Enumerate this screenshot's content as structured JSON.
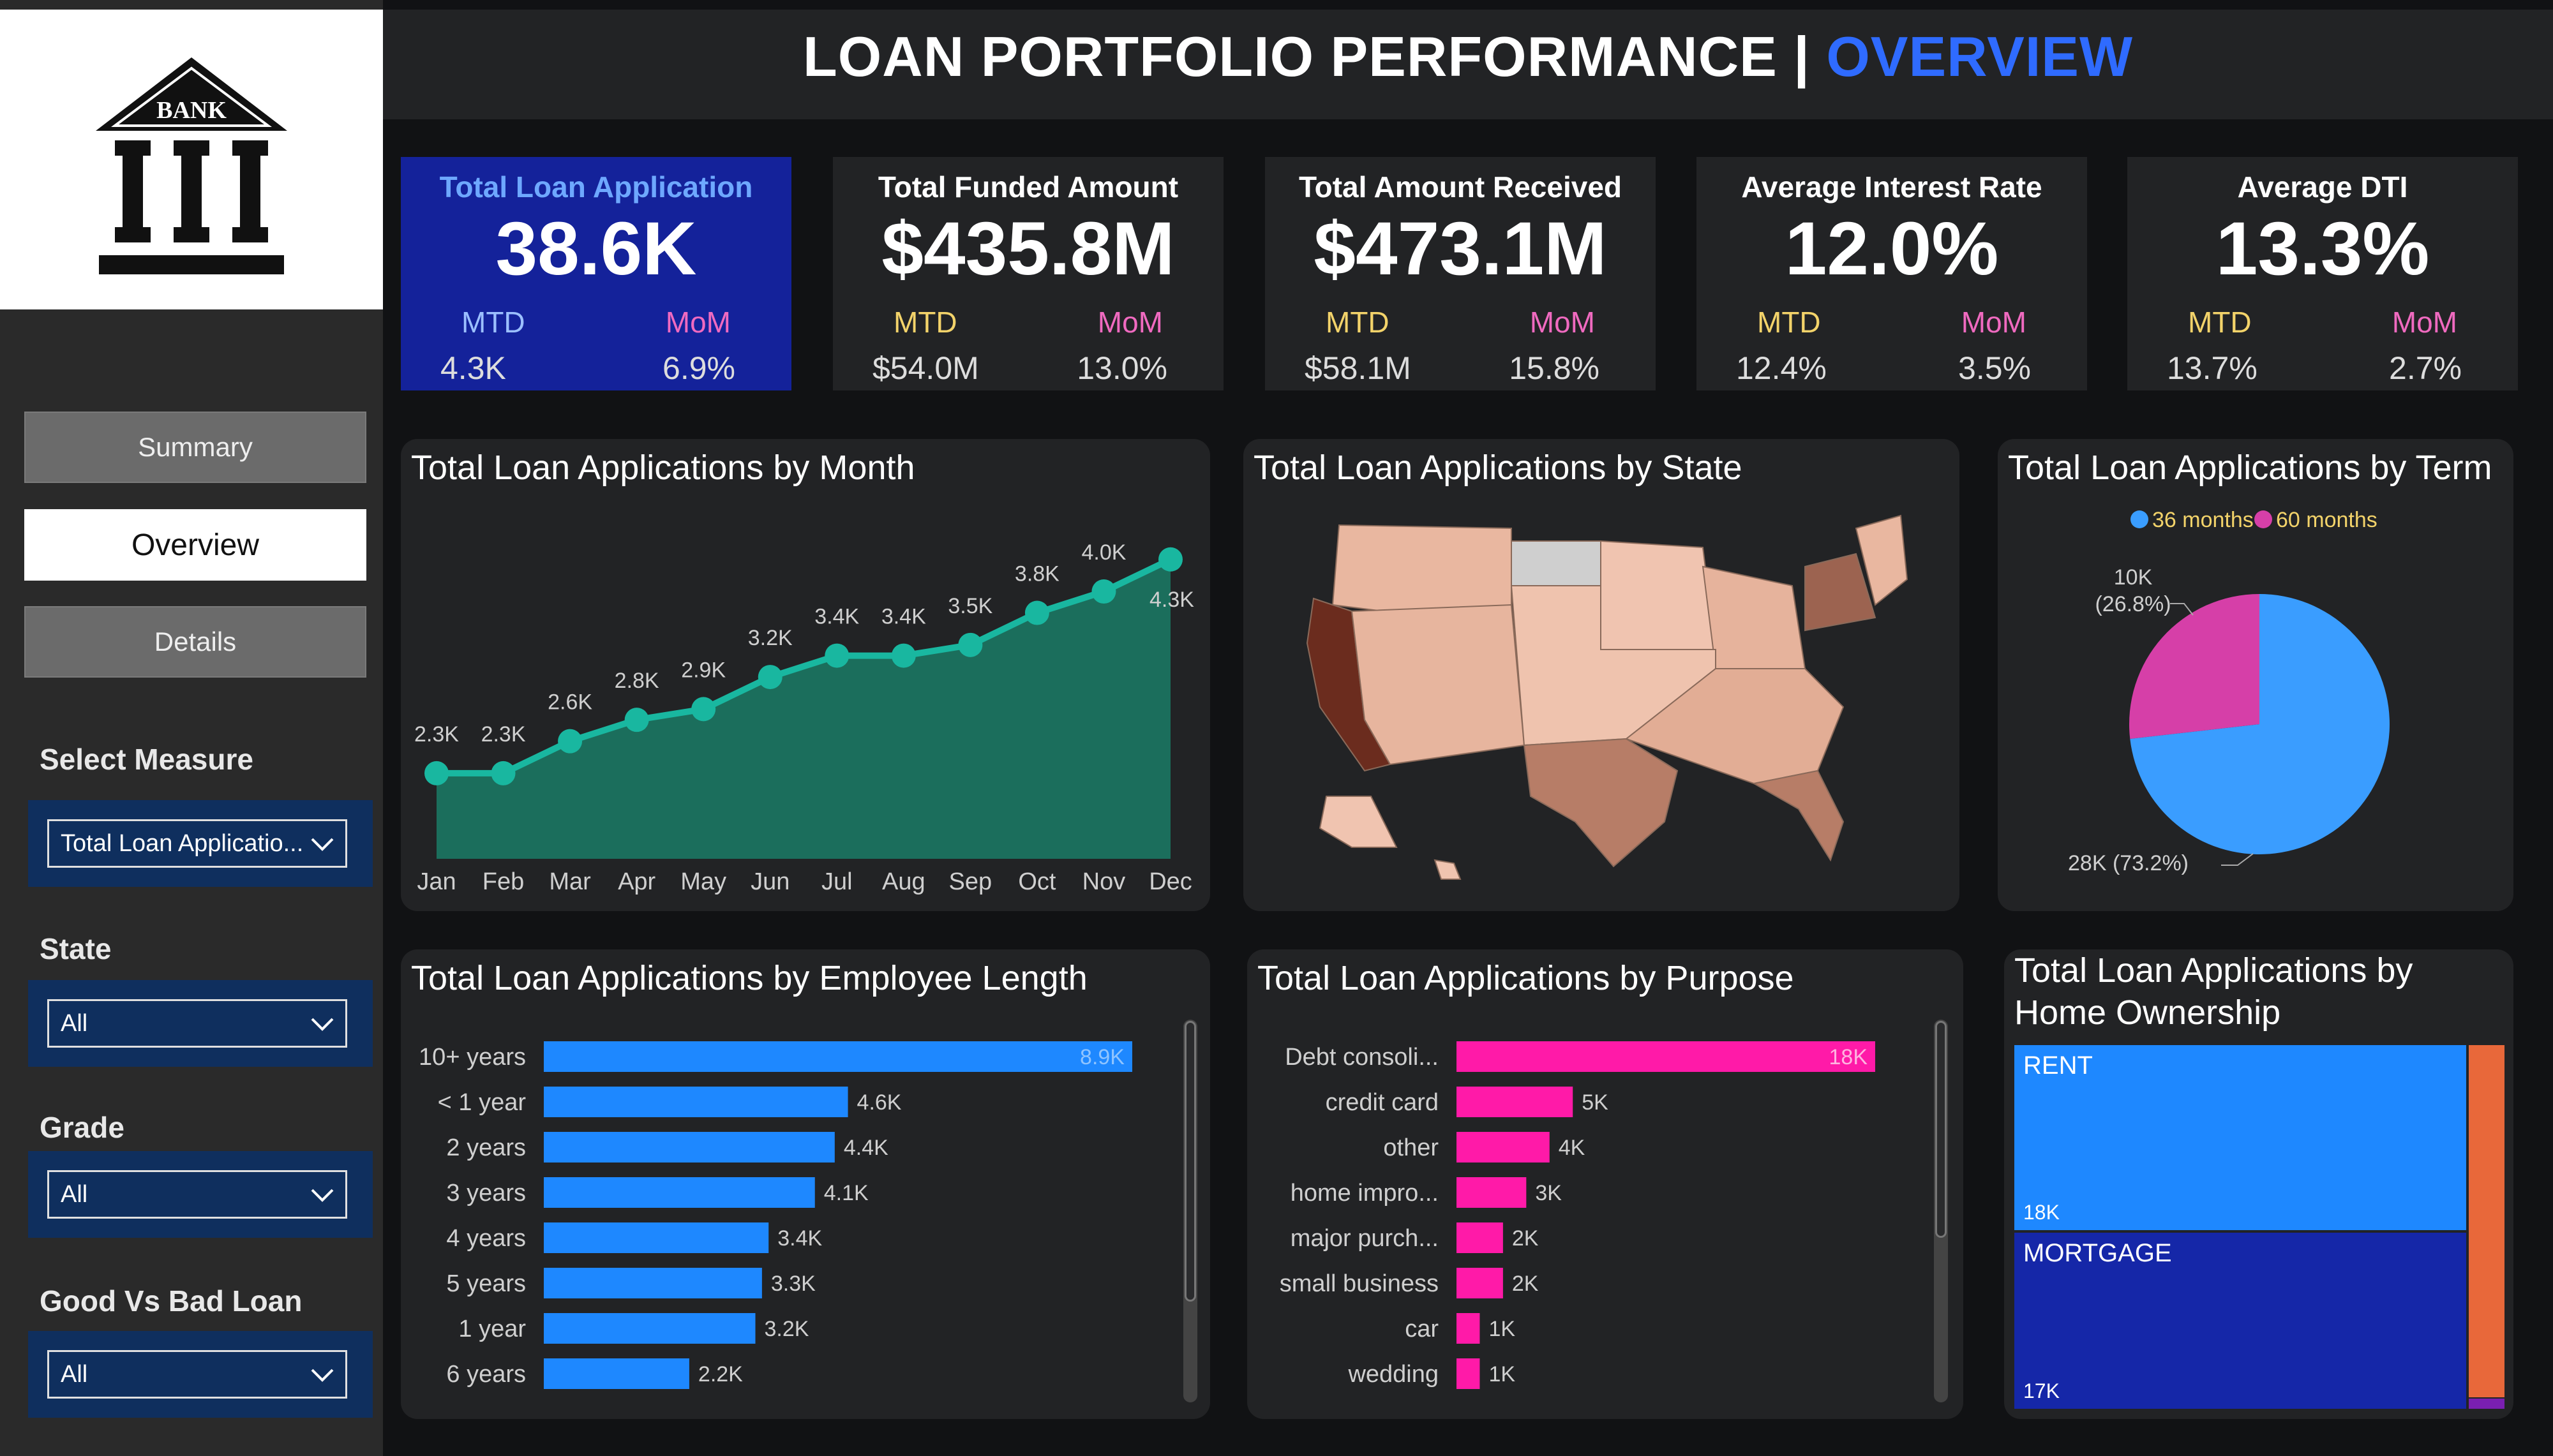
{
  "header": {
    "title_main": "LOAN PORTFOLIO PERFORMANCE |",
    "title_accent": "OVERVIEW"
  },
  "logo": {
    "text": "BANK"
  },
  "nav": [
    {
      "label": "Summary",
      "active": false
    },
    {
      "label": "Overview",
      "active": true
    },
    {
      "label": "Details",
      "active": false
    }
  ],
  "filters": [
    {
      "label": "Select Measure",
      "value": "Total Loan Applicatio..."
    },
    {
      "label": "State",
      "value": "All"
    },
    {
      "label": "Grade",
      "value": "All"
    },
    {
      "label": "Good Vs Bad Loan",
      "value": "All"
    }
  ],
  "kpis": [
    {
      "label": "Total Loan Application",
      "value": "38.6K",
      "mtd_label": "MTD",
      "mtd": "4.3K",
      "mom_label": "MoM",
      "mom": "6.9%"
    },
    {
      "label": "Total Funded Amount",
      "value": "$435.8M",
      "mtd_label": "MTD",
      "mtd": "$54.0M",
      "mom_label": "MoM",
      "mom": "13.0%"
    },
    {
      "label": "Total  Amount Received",
      "value": "$473.1M",
      "mtd_label": "MTD",
      "mtd": "$58.1M",
      "mom_label": "MoM",
      "mom": "15.8%"
    },
    {
      "label": "Average Interest Rate",
      "value": "12.0%",
      "mtd_label": "MTD",
      "mtd": "12.4%",
      "mom_label": "MoM",
      "mom": "3.5%"
    },
    {
      "label": "Average DTI",
      "value": "13.3%",
      "mtd_label": "MTD",
      "mtd": "13.7%",
      "mom_label": "MoM",
      "mom": "2.7%"
    }
  ],
  "panels": {
    "month": "Total Loan Applications by Month",
    "state": "Total Loan Applications by State",
    "term": "Total Loan Applications by Term",
    "emp": "Total Loan Applications by Employee Length",
    "purpose": "Total Loan Applications by Purpose",
    "home": "Total Loan Applications by Home Ownership"
  },
  "colors": {
    "accent": "#2f6bff",
    "line": "#19b7a0",
    "area": "#1b6e5c",
    "bar_blue": "#1e88ff",
    "bar_pink": "#ff1aa8",
    "pie_blue": "#3a9dff",
    "pie_pink": "#d63fa8",
    "rent": "#1e88ff",
    "mortgage": "#1527a8",
    "own": "#e8683a",
    "other": "#7a1fb0"
  },
  "chart_data": [
    {
      "type": "area",
      "categories": [
        "Jan",
        "Feb",
        "Mar",
        "Apr",
        "May",
        "Jun",
        "Jul",
        "Aug",
        "Sep",
        "Oct",
        "Nov",
        "Dec"
      ],
      "values": [
        2.3,
        2.3,
        2.6,
        2.8,
        2.9,
        3.2,
        3.4,
        3.4,
        3.5,
        3.8,
        4.0,
        4.3
      ],
      "labels": [
        "2.3K",
        "2.3K",
        "2.6K",
        "2.8K",
        "2.9K",
        "3.2K",
        "3.4K",
        "3.4K",
        "3.5K",
        "3.8K",
        "4.0K",
        "4.3K"
      ]
    },
    {
      "type": "pie",
      "legend": [
        "36 months",
        "60 months"
      ],
      "slices": [
        {
          "name": "36 months",
          "value": 28,
          "label": "28K (73.2%)",
          "pct": 73.2
        },
        {
          "name": "60 months",
          "value": 10,
          "label": "10K (26.8%)",
          "pct": 26.8
        }
      ]
    },
    {
      "type": "bar",
      "orientation": "horizontal",
      "categories": [
        "10+ years",
        "< 1 year",
        "2 years",
        "3 years",
        "4 years",
        "5 years",
        "1 year",
        "6 years"
      ],
      "values": [
        8.9,
        4.6,
        4.4,
        4.1,
        3.4,
        3.3,
        3.2,
        2.2
      ],
      "labels": [
        "8.9K",
        "4.6K",
        "4.4K",
        "4.1K",
        "3.4K",
        "3.3K",
        "3.2K",
        "2.2K"
      ]
    },
    {
      "type": "bar",
      "orientation": "horizontal",
      "categories": [
        "Debt consoli...",
        "credit card",
        "other",
        "home impro...",
        "major purch...",
        "small business",
        "car",
        "wedding"
      ],
      "values": [
        18,
        5,
        4,
        3,
        2,
        2,
        1,
        1
      ],
      "labels": [
        "18K",
        "5K",
        "4K",
        "3K",
        "2K",
        "2K",
        "1K",
        "1K"
      ]
    },
    {
      "type": "treemap",
      "items": [
        {
          "name": "RENT",
          "label": "18K",
          "value": 18
        },
        {
          "name": "MORTGAGE",
          "label": "17K",
          "value": 17
        }
      ]
    }
  ]
}
